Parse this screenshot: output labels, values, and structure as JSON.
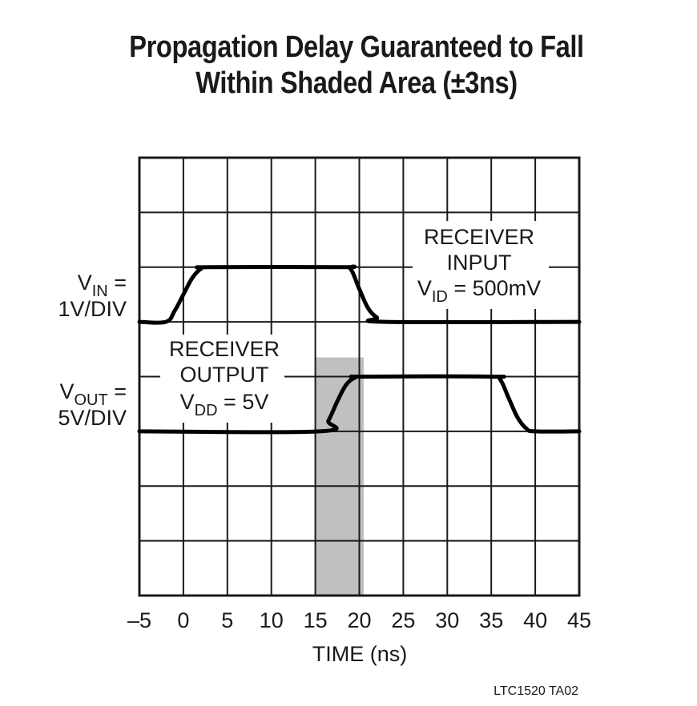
{
  "chart_data": {
    "type": "line",
    "title": "Propagation Delay Guaranteed to Fall Within Shaded Area (±3ns)",
    "title_lines": [
      "Propagation Delay Guaranteed to Fall",
      "Within Shaded Area (±3ns)"
    ],
    "xlabel": "TIME (ns)",
    "xlim": [
      -5,
      45
    ],
    "x_ticks": [
      "–5",
      "0",
      "5",
      "10",
      "15",
      "20",
      "25",
      "30",
      "35",
      "40",
      "45"
    ],
    "grid": true,
    "grid_divisions": {
      "x": 10,
      "y": 8
    },
    "y_scales": [
      {
        "label_main": "V",
        "label_sub": "IN",
        "label_rest": " =",
        "scale": "1V/DIV"
      },
      {
        "label_main": "V",
        "label_sub": "OUT",
        "label_rest": " =",
        "scale": "5V/DIV"
      }
    ],
    "series": [
      {
        "name": "Receiver Input",
        "annotation": {
          "line1": "RECEIVER",
          "line2": "INPUT",
          "v_main": "V",
          "v_sub": "ID",
          "v_rest": " = 500mV"
        },
        "x": [
          -5,
          -2,
          -1,
          0,
          1,
          2,
          3,
          18,
          19,
          20,
          21,
          22,
          23,
          45
        ],
        "y_div": [
          0,
          0,
          0.2,
          0.5,
          0.8,
          0.97,
          1,
          1,
          0.97,
          0.6,
          0.25,
          0.08,
          0,
          0
        ]
      },
      {
        "name": "Receiver Output",
        "annotation": {
          "line1": "RECEIVER",
          "line2": "OUTPUT",
          "v_main": "V",
          "v_sub": "DD",
          "v_rest": " = 5V"
        },
        "x": [
          -5,
          15.5,
          16.5,
          17.5,
          18.5,
          19.5,
          20.5,
          35,
          36,
          37,
          38,
          39,
          40,
          45
        ],
        "y_div": [
          0,
          0,
          0.2,
          0.55,
          0.85,
          0.98,
          1,
          1,
          0.95,
          0.6,
          0.25,
          0.05,
          0,
          0
        ]
      }
    ],
    "shaded_region": {
      "x_start": 15,
      "x_end": 20.5,
      "color": "#c0c0c0",
      "meaning": "±3ns"
    },
    "footnote": "LTC1520 TA02"
  }
}
